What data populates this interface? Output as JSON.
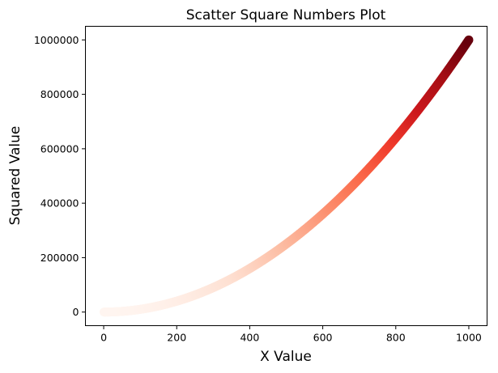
{
  "chart_data": {
    "type": "scatter",
    "title": "Scatter Square Numbers Plot",
    "xlabel": "X Value",
    "ylabel": "Squared Value",
    "xlim": [
      -50,
      1050
    ],
    "ylim": [
      -50000,
      1050000
    ],
    "xticks": [
      0,
      200,
      400,
      600,
      800,
      1000
    ],
    "yticks": [
      0,
      200000,
      400000,
      600000,
      800000,
      1000000
    ],
    "xtick_labels": [
      "0",
      "200",
      "400",
      "600",
      "800",
      "1000"
    ],
    "ytick_labels": [
      "0",
      "200000",
      "400000",
      "600000",
      "800000",
      "1000000"
    ],
    "grid": false,
    "colormap": "Reds",
    "color_by": "y",
    "series": [
      {
        "x_start": 1,
        "x_end": 1000,
        "x_step": 1,
        "formula": "y = x^2"
      }
    ]
  }
}
